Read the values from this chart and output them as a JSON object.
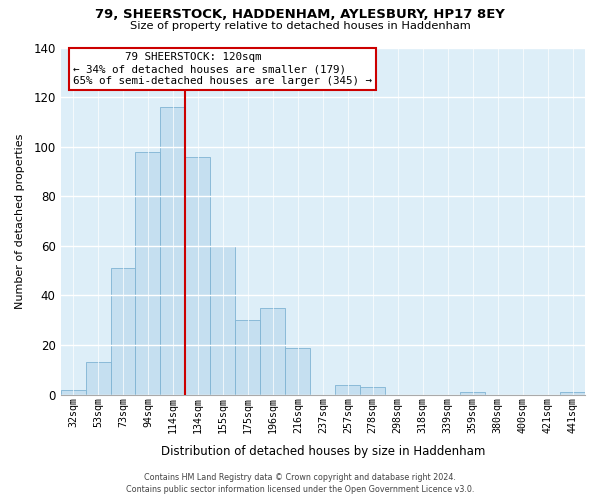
{
  "title1": "79, SHEERSTOCK, HADDENHAM, AYLESBURY, HP17 8EY",
  "title2": "Size of property relative to detached houses in Haddenham",
  "xlabel": "Distribution of detached houses by size in Haddenham",
  "ylabel": "Number of detached properties",
  "bar_labels": [
    "32sqm",
    "53sqm",
    "73sqm",
    "94sqm",
    "114sqm",
    "134sqm",
    "155sqm",
    "175sqm",
    "196sqm",
    "216sqm",
    "237sqm",
    "257sqm",
    "278sqm",
    "298sqm",
    "318sqm",
    "339sqm",
    "359sqm",
    "380sqm",
    "400sqm",
    "421sqm",
    "441sqm"
  ],
  "bar_values": [
    2,
    13,
    51,
    98,
    116,
    96,
    60,
    30,
    35,
    19,
    0,
    4,
    3,
    0,
    0,
    0,
    1,
    0,
    0,
    0,
    1
  ],
  "bar_color": "#c5dff0",
  "highlight_bar_index": 4,
  "highlight_color": "#cc0000",
  "ylim": [
    0,
    140
  ],
  "yticks": [
    0,
    20,
    40,
    60,
    80,
    100,
    120,
    140
  ],
  "annotation_title": "79 SHEERSTOCK: 120sqm",
  "annotation_line1": "← 34% of detached houses are smaller (179)",
  "annotation_line2": "65% of semi-detached houses are larger (345) →",
  "footer1": "Contains HM Land Registry data © Crown copyright and database right 2024.",
  "footer2": "Contains public sector information licensed under the Open Government Licence v3.0."
}
